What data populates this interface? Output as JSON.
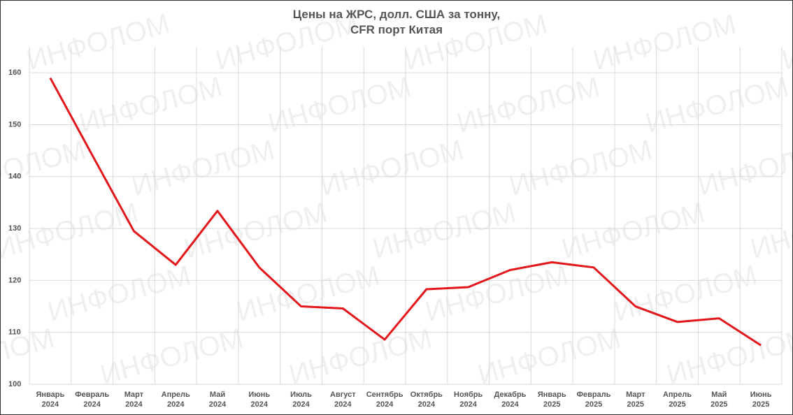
{
  "chart_data": {
    "type": "line",
    "title": "Цены на ЖРС, долл. США за тонну,\nCFR порт Китая",
    "watermark": "ИНФОЛОМ",
    "categories": [
      "Январь 2024",
      "Февраль 2024",
      "Март 2024",
      "Апрель 2024",
      "Май 2024",
      "Июнь 2024",
      "Июль 2024",
      "Август 2024",
      "Сентябрь 2024",
      "Октябрь 2024",
      "Ноябрь 2024",
      "Декабрь 2024",
      "Январь 2025",
      "Февраль 2025",
      "Март 2025",
      "Апрель 2025",
      "Май 2025",
      "Июнь 2025"
    ],
    "values": [
      159,
      144.2,
      129.5,
      123,
      133.4,
      122.5,
      115,
      114.6,
      108.6,
      118.3,
      118.7,
      122,
      123.5,
      122.5,
      115,
      112,
      112.7,
      107.5
    ],
    "color": "#e3161b",
    "ylim": [
      100,
      165
    ],
    "yticks": [
      100,
      110,
      120,
      130,
      140,
      150,
      160
    ],
    "grid": true
  }
}
